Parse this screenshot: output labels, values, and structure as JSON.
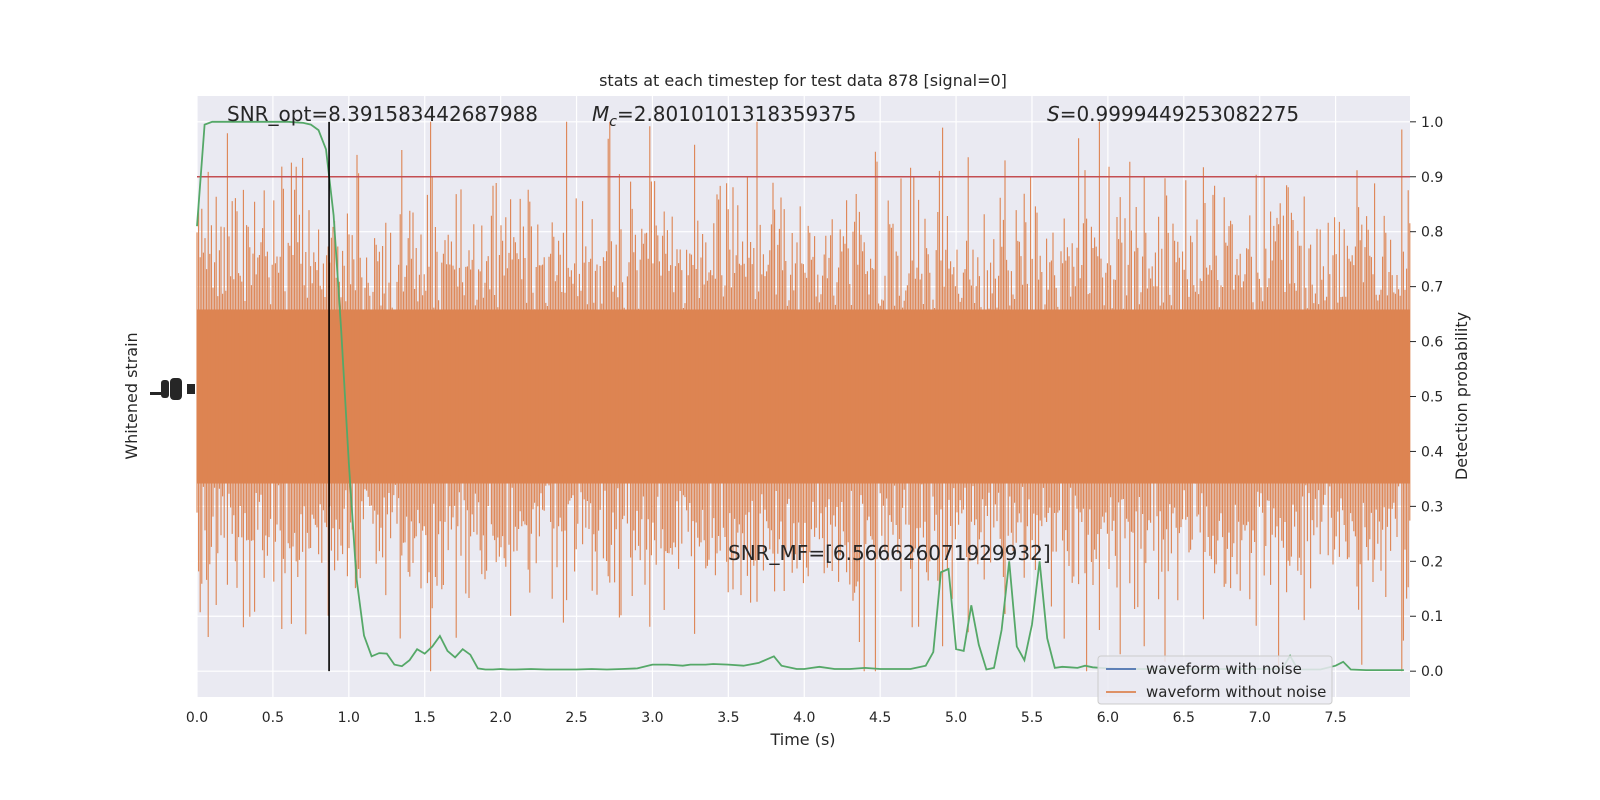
{
  "chart_data": {
    "type": "line",
    "title": "stats at each timestep for test data 878 [signal=0]",
    "xlabel": "Time (s)",
    "ylabel_left": "Whitened strain",
    "ylabel_right": "Detection probability",
    "xlim": [
      0.0,
      7.99
    ],
    "ylim_right": [
      -0.047,
      1.047
    ],
    "x_ticks": [
      "0.0",
      "0.5",
      "1.0",
      "1.5",
      "2.0",
      "2.5",
      "3.0",
      "3.5",
      "4.0",
      "4.5",
      "5.0",
      "5.5",
      "6.0",
      "6.5",
      "7.0",
      "7.5"
    ],
    "y_ticks_right": [
      "0.0",
      "0.1",
      "0.2",
      "0.3",
      "0.4",
      "0.5",
      "0.6",
      "0.7",
      "0.8",
      "0.9",
      "1.0"
    ],
    "grid": true,
    "background": "#eaeaf2",
    "annotations": {
      "snr_opt": "SNR_opt=8.391583442687988",
      "mc_label": "=2.8010101318359375",
      "s_label": "=0.9999449253082275",
      "snr_mf": "SNR_MF=[6.566626071929932]"
    },
    "threshold": {
      "value": 0.9,
      "color": "#c44e52"
    },
    "merger_time": 0.87,
    "series": [
      {
        "name": "waveform with noise",
        "color": "#4c72b0"
      },
      {
        "name": "waveform without noise",
        "color": "#dd8452"
      }
    ],
    "strain_band": {
      "color": "#dd8452",
      "center": 0.5,
      "dense_half_width": 0.22,
      "max_half_width": 0.5
    },
    "detection_probability": {
      "color": "#55a868",
      "x": [
        0.0,
        0.05,
        0.1,
        0.15,
        0.2,
        0.3,
        0.4,
        0.5,
        0.6,
        0.7,
        0.75,
        0.8,
        0.85,
        0.9,
        0.95,
        1.0,
        1.05,
        1.1,
        1.15,
        1.2,
        1.25,
        1.3,
        1.35,
        1.4,
        1.45,
        1.5,
        1.55,
        1.6,
        1.65,
        1.7,
        1.75,
        1.8,
        1.85,
        1.9,
        1.95,
        2.0,
        2.05,
        2.1,
        2.2,
        2.3,
        2.4,
        2.5,
        2.6,
        2.7,
        2.8,
        2.9,
        3.0,
        3.1,
        3.2,
        3.25,
        3.3,
        3.35,
        3.4,
        3.5,
        3.6,
        3.7,
        3.8,
        3.85,
        3.95,
        4.0,
        4.05,
        4.1,
        4.2,
        4.3,
        4.4,
        4.5,
        4.6,
        4.7,
        4.8,
        4.85,
        4.9,
        4.95,
        5.0,
        5.05,
        5.1,
        5.15,
        5.2,
        5.25,
        5.3,
        5.35,
        5.4,
        5.45,
        5.5,
        5.55,
        5.6,
        5.65,
        5.7,
        5.75,
        5.8,
        5.85,
        5.9,
        6.0,
        6.1,
        6.2,
        6.3,
        6.4,
        6.5,
        6.6,
        6.7,
        6.8,
        6.9,
        7.0,
        7.1,
        7.15,
        7.2,
        7.25,
        7.3,
        7.4,
        7.5,
        7.55,
        7.6,
        7.7,
        7.8,
        7.9,
        7.95
      ],
      "y": [
        0.81,
        0.995,
        1.0,
        1.0,
        1.0,
        1.0,
        1.0,
        1.0,
        1.0,
        0.998,
        0.995,
        0.985,
        0.95,
        0.83,
        0.62,
        0.38,
        0.17,
        0.065,
        0.027,
        0.033,
        0.032,
        0.012,
        0.009,
        0.02,
        0.04,
        0.032,
        0.045,
        0.064,
        0.037,
        0.025,
        0.04,
        0.03,
        0.005,
        0.003,
        0.003,
        0.004,
        0.003,
        0.003,
        0.004,
        0.003,
        0.003,
        0.003,
        0.004,
        0.003,
        0.004,
        0.005,
        0.012,
        0.012,
        0.01,
        0.012,
        0.012,
        0.012,
        0.013,
        0.012,
        0.01,
        0.015,
        0.027,
        0.01,
        0.004,
        0.004,
        0.006,
        0.008,
        0.004,
        0.004,
        0.006,
        0.004,
        0.004,
        0.004,
        0.01,
        0.035,
        0.18,
        0.186,
        0.04,
        0.037,
        0.12,
        0.048,
        0.003,
        0.006,
        0.075,
        0.2,
        0.045,
        0.02,
        0.085,
        0.2,
        0.06,
        0.006,
        0.008,
        0.007,
        0.006,
        0.01,
        0.007,
        0.005,
        0.004,
        0.004,
        0.004,
        0.004,
        0.003,
        0.004,
        0.004,
        0.004,
        0.004,
        0.004,
        0.004,
        0.005,
        0.028,
        0.003,
        0.003,
        0.003,
        0.01,
        0.017,
        0.003,
        0.002,
        0.002,
        0.002,
        0.002
      ]
    }
  }
}
